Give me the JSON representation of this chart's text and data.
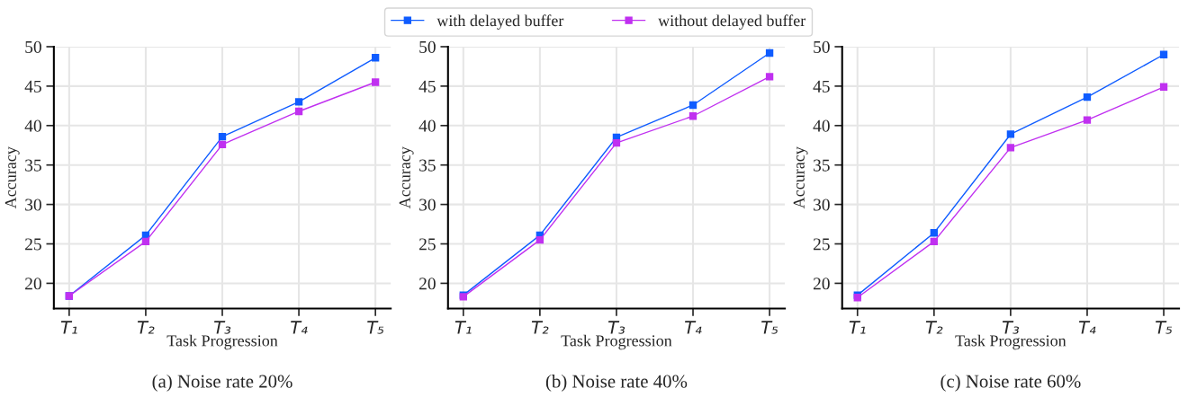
{
  "chart_data": [
    {
      "type": "line",
      "title": "(a) Noise rate 20%",
      "xlabel": "Task Progression",
      "ylabel": "Accuracy",
      "categories": [
        "T₁",
        "T₂",
        "T₃",
        "T₄",
        "T₅"
      ],
      "ylim": [
        16.8,
        50
      ],
      "yticks": [
        20,
        25,
        30,
        35,
        40,
        45,
        50
      ],
      "grid": true,
      "marker": "square",
      "legend": "top",
      "series": [
        {
          "name": "with delayed buffer",
          "color": "#0f5cff",
          "values": [
            18.4,
            26.1,
            38.6,
            43.0,
            48.6
          ]
        },
        {
          "name": "without delayed buffer",
          "color": "#c030f0",
          "values": [
            18.4,
            25.3,
            37.6,
            41.8,
            45.5
          ]
        }
      ]
    },
    {
      "type": "line",
      "title": "(b) Noise rate 40%",
      "xlabel": "Task Progression",
      "ylabel": "Accuracy",
      "categories": [
        "T₁",
        "T₂",
        "T₃",
        "T₄",
        "T₅"
      ],
      "ylim": [
        16.8,
        50
      ],
      "yticks": [
        20,
        25,
        30,
        35,
        40,
        45,
        50
      ],
      "grid": true,
      "marker": "square",
      "series": [
        {
          "color": "#0f5cff",
          "values": [
            18.5,
            26.1,
            38.5,
            42.6,
            49.2
          ]
        },
        {
          "color": "#c030f0",
          "values": [
            18.3,
            25.5,
            37.8,
            41.2,
            46.2
          ]
        }
      ]
    },
    {
      "type": "line",
      "title": "(c) Noise rate 60%",
      "xlabel": "Task Progression",
      "ylabel": "Accuracy",
      "categories": [
        "T₁",
        "T₂",
        "T₃",
        "T₄",
        "T₅"
      ],
      "ylim": [
        16.8,
        50
      ],
      "yticks": [
        20,
        25,
        30,
        35,
        40,
        45,
        50
      ],
      "grid": true,
      "marker": "square",
      "series": [
        {
          "color": "#0f5cff",
          "values": [
            18.5,
            26.4,
            38.9,
            43.6,
            49.0
          ]
        },
        {
          "color": "#c030f0",
          "values": [
            18.2,
            25.3,
            37.2,
            40.7,
            44.9
          ]
        }
      ]
    }
  ]
}
